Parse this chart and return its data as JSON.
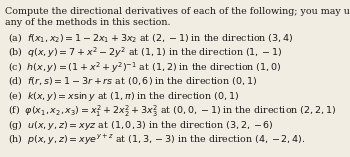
{
  "title_line1": "Compute the directional derivatives of each of the following; you may use",
  "title_line2": "any of the methods in this section.",
  "lines": [
    "(a)  $f(x_1, x_2) = 1 - 2x_1 + 3x_2$ at $(2, -1)$ in the direction $(3, 4)$",
    "(b)  $q(x, y) = 7 + x^2 - 2y^2$ at $(1, 1)$ in the direction $(1, -1)$",
    "(c)  $h(x, y) = (1 + x^2 + y^2)^{-1}$ at $(1, 2)$ in the direction $(1, 0)$",
    "(d)  $f(r, s) = 1 - 3r + rs$ at $(0, 6)$ in the direction $(0, 1)$",
    "(e)  $k(x, y) = x\\sin y$ at $(1, \\pi)$ in the direction $(0, 1)$",
    "(f)  $\\varphi(x_1, x_2, x_3) = x_1^2 + 2x_2^2 + 3x_3^2$ at $(0, 0, -1)$ in the direction $(2, 2, 1)$",
    "(g)  $u(x, y, z) = xyz$ at $(1, 0, 3)$ in the direction $(3, 2, -6)$",
    "(h)  $p(x, y, z) = xye^{y+z}$ at $(1, 3, -3)$ in the direction $(4, -2, 4)$."
  ],
  "bg_color": "#f2ede3",
  "text_color": "#1a1a1a",
  "font_size": 6.8,
  "title_font_size": 6.8
}
